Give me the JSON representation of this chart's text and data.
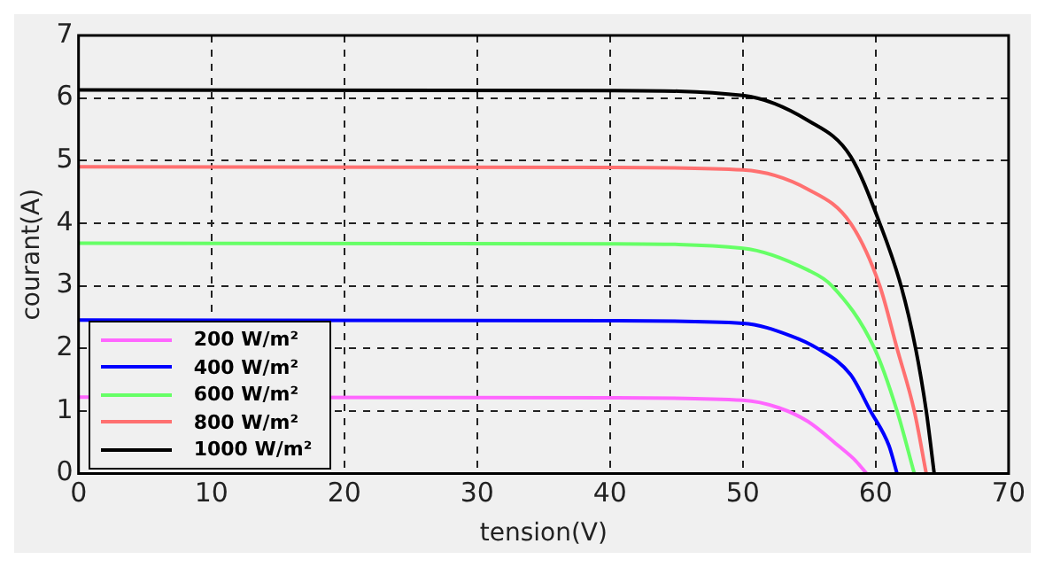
{
  "chart_data": {
    "type": "line",
    "xlabel": "tension(V)",
    "ylabel": "courant(A)",
    "xlim": [
      0,
      70
    ],
    "xticks": [
      0,
      10,
      20,
      30,
      40,
      50,
      60,
      70
    ],
    "ylim": [
      0,
      7
    ],
    "yticks": [
      0,
      1,
      2,
      3,
      4,
      5,
      6,
      7
    ],
    "grid": true,
    "legend": "bottom left",
    "marker": "none",
    "line_style": "solid",
    "series": [
      {
        "name": "200 W/m²",
        "color": "#ff66ff",
        "x": [
          0,
          40,
          50,
          52.7,
          54.9,
          57.2,
          58.5,
          59.3
        ],
        "values": [
          1.22,
          1.21,
          1.17,
          1.05,
          0.83,
          0.44,
          0.2,
          0
        ]
      },
      {
        "name": "400 W/m²",
        "color": "#0000ff",
        "x": [
          0,
          40,
          50,
          53.6,
          55.6,
          58.1,
          59.6,
          61,
          61.6
        ],
        "values": [
          2.45,
          2.44,
          2.4,
          2.2,
          2.0,
          1.58,
          1,
          0.44,
          0
        ]
      },
      {
        "name": "600 W/m²",
        "color": "#66ff66",
        "x": [
          0,
          40,
          50,
          54.9,
          56.7,
          59.9,
          61.6,
          62.9
        ],
        "values": [
          3.68,
          3.67,
          3.6,
          3.25,
          3.0,
          2.0,
          1.0,
          0
        ]
      },
      {
        "name": "800 W/m²",
        "color": "#ff7070",
        "x": [
          0,
          40,
          50,
          54.9,
          58.1,
          60.3,
          61.6,
          62.9,
          63.8
        ],
        "values": [
          4.9,
          4.89,
          4.85,
          4.54,
          4.0,
          3.0,
          2.0,
          1.0,
          0
        ]
      },
      {
        "name": "1000 W/m²",
        "color": "#000000",
        "x": [
          0,
          40,
          50,
          54.9,
          58.1,
          60.3,
          61.9,
          63,
          63.8,
          64.4
        ],
        "values": [
          6.13,
          6.12,
          6.04,
          5.64,
          5.07,
          4.0,
          3.0,
          2.0,
          1.0,
          0
        ]
      }
    ]
  }
}
